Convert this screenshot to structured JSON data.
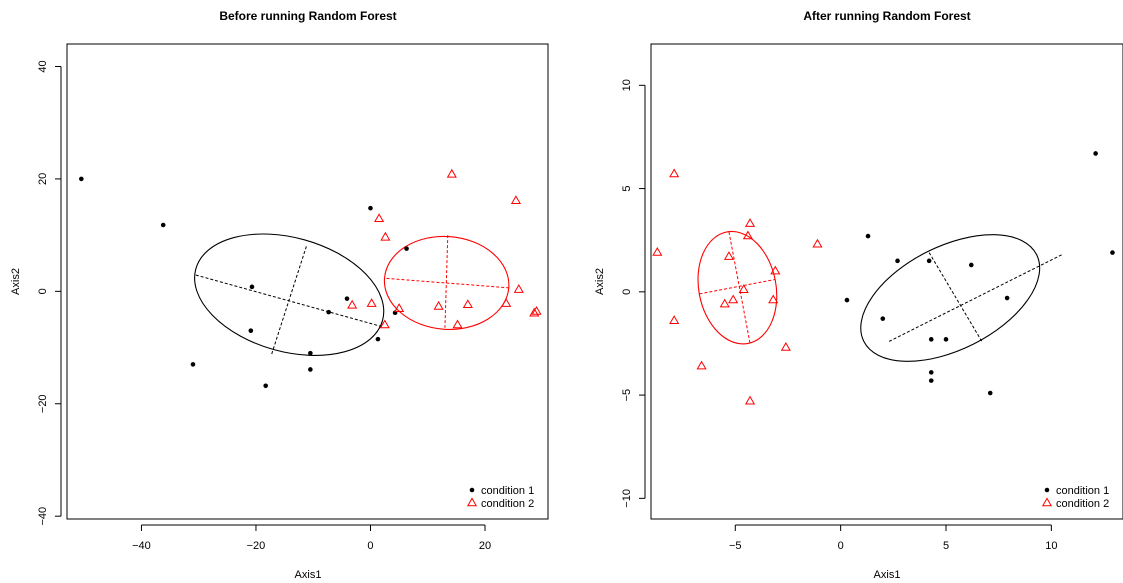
{
  "chart_data": [
    {
      "type": "scatter",
      "title": "Before running Random Forest",
      "xlabel": "Axis1",
      "ylabel": "Axis2",
      "xlim": [
        -53,
        31
      ],
      "ylim": [
        -40.5,
        44
      ],
      "xticks": [
        -40,
        -20,
        0,
        20
      ],
      "yticks": [
        -40,
        -20,
        0,
        20,
        40
      ],
      "xtick_labels": [
        "−40",
        "−20",
        "0",
        "20"
      ],
      "ytick_labels": [
        "−40",
        "−20",
        "0",
        "20",
        "40"
      ],
      "grid": false,
      "legend_position": "bottom-right",
      "series": [
        {
          "name": "condition 1",
          "marker": "filled-circle",
          "color": "#000000",
          "points": [
            [
              -50.5,
              20
            ],
            [
              -36.2,
              11.8
            ],
            [
              -31,
              -13
            ],
            [
              -20.7,
              0.8
            ],
            [
              -20.9,
              -7
            ],
            [
              -18.3,
              -16.8
            ],
            [
              -10.5,
              -11
            ],
            [
              -10.5,
              -13.9
            ],
            [
              -7.3,
              -3.7
            ],
            [
              -4.1,
              -1.3
            ],
            [
              0,
              14.8
            ],
            [
              1.3,
              -8.5
            ],
            [
              4.3,
              -3.8
            ],
            [
              6.3,
              7.6
            ]
          ],
          "ellipse": {
            "center": [
              -14.2,
              -0.6
            ],
            "axes": [
              [
                -30.5,
                2.9
              ],
              [
                2.1,
                -6.3
              ],
              [
                -11.2,
                8
              ],
              [
                -17.3,
                -11.3
              ]
            ]
          }
        },
        {
          "name": "condition 2",
          "marker": "open-triangle",
          "color": "#ff0000",
          "points": [
            [
              14.2,
              20.8
            ],
            [
              25.4,
              16.1
            ],
            [
              1.5,
              12.9
            ],
            [
              2.6,
              9.6
            ],
            [
              -3.2,
              -2.5
            ],
            [
              0.2,
              -2.2
            ],
            [
              2.5,
              -6
            ],
            [
              5,
              -3.1
            ],
            [
              11.9,
              -2.7
            ],
            [
              15.2,
              -6
            ],
            [
              17,
              -2.4
            ],
            [
              23.7,
              -2.2
            ],
            [
              25.9,
              0.3
            ],
            [
              28.6,
              -3.9
            ],
            [
              29,
              -3.6
            ]
          ],
          "ellipse": {
            "center": [
              13.3,
              1.5
            ],
            "axes": [
              [
                2.8,
                2.3
              ],
              [
                24.5,
                0.6
              ],
              [
                13.5,
                10
              ],
              [
                13,
                -6.5
              ]
            ]
          }
        }
      ]
    },
    {
      "type": "scatter",
      "title": "After running Random Forest",
      "xlabel": "Axis1",
      "ylabel": "Axis2",
      "xlim": [
        -9,
        13.4
      ],
      "ylim": [
        -11,
        12
      ],
      "xticks": [
        -5,
        0,
        5,
        10
      ],
      "yticks": [
        -10,
        -5,
        0,
        5,
        10
      ],
      "xtick_labels": [
        "−5",
        "0",
        "5",
        "10"
      ],
      "ytick_labels": [
        "−10",
        "−5",
        "0",
        "5",
        "10"
      ],
      "grid": false,
      "legend_position": "bottom-right",
      "series": [
        {
          "name": "condition 1",
          "marker": "filled-circle",
          "color": "#000000",
          "points": [
            [
              12.1,
              6.7
            ],
            [
              12.9,
              1.9
            ],
            [
              1.3,
              2.7
            ],
            [
              2.7,
              1.5
            ],
            [
              4.2,
              1.5
            ],
            [
              6.2,
              1.3
            ],
            [
              0.3,
              -0.4
            ],
            [
              7.9,
              -0.3
            ],
            [
              2,
              -1.3
            ],
            [
              4.3,
              -2.3
            ],
            [
              5,
              -2.3
            ],
            [
              4.3,
              -3.9
            ],
            [
              4.3,
              -4.3
            ],
            [
              7.1,
              -4.9
            ]
          ],
          "ellipse": {
            "center": [
              5.2,
              -0.3
            ],
            "axes": [
              [
                2.3,
                -2.4
              ],
              [
                10.5,
                1.8
              ],
              [
                4.2,
                1.9
              ],
              [
                6.7,
                -2.4
              ]
            ]
          }
        },
        {
          "name": "condition 2",
          "marker": "open-triangle",
          "color": "#ff0000",
          "points": [
            [
              -7.9,
              5.7
            ],
            [
              -8.7,
              1.9
            ],
            [
              -4.3,
              3.3
            ],
            [
              -4.4,
              2.7
            ],
            [
              -1.1,
              2.3
            ],
            [
              -5.3,
              1.7
            ],
            [
              -3.1,
              1
            ],
            [
              -4.6,
              0.1
            ],
            [
              -3.2,
              -0.4
            ],
            [
              -5.1,
              -0.4
            ],
            [
              -5.5,
              -0.6
            ],
            [
              -7.9,
              -1.4
            ],
            [
              -2.6,
              -2.7
            ],
            [
              -6.6,
              -3.6
            ],
            [
              -4.3,
              -5.3
            ]
          ],
          "ellipse": {
            "center": [
              -4.9,
              0.2
            ],
            "axes": [
              [
                -5.3,
                2.9
              ],
              [
                -4.3,
                -2.5
              ],
              [
                -6.7,
                -0.1
              ],
              [
                -3.1,
                0.6
              ]
            ]
          }
        }
      ]
    }
  ]
}
